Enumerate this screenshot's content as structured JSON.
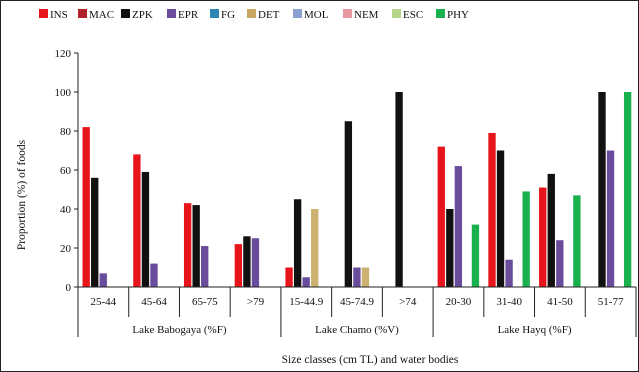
{
  "chart_data": {
    "type": "bar",
    "title": "",
    "xlabel": "Size classes (cm TL) and water bodies",
    "ylabel": "Proportion (%) of foods",
    "ylim": [
      0,
      120
    ],
    "yticks": [
      "0",
      "20",
      "40",
      "60",
      "80",
      "100",
      "120"
    ],
    "grid": false,
    "legend_position": "top",
    "categories": [
      "25-44",
      "45-64",
      "65-75",
      ">79",
      "15-44.9",
      "45-74.9",
      ">74",
      "20-30",
      "31-40",
      "41-50",
      "51-77"
    ],
    "groups": [
      {
        "label": "Lake Babogaya (%F)",
        "span": 4
      },
      {
        "label": "Lake Chamo (%V)",
        "span": 3
      },
      {
        "label": "Lake Hayq (%F)",
        "span": 4
      }
    ],
    "series": [
      {
        "name": "INS",
        "color": "#e8141b",
        "values": [
          82,
          68,
          43,
          22,
          10,
          0,
          0,
          72,
          79,
          51,
          0
        ]
      },
      {
        "name": "MAC",
        "color": "#b0232a",
        "values": [
          0,
          0,
          0,
          0,
          0,
          0,
          0,
          0,
          0,
          0,
          0
        ]
      },
      {
        "name": "ZPK",
        "color": "#111111",
        "values": [
          56,
          59,
          42,
          26,
          45,
          85,
          100,
          40,
          70,
          58,
          100
        ]
      },
      {
        "name": "EPR",
        "color": "#6a4c9c",
        "values": [
          7,
          12,
          21,
          25,
          5,
          10,
          0,
          62,
          14,
          24,
          70
        ]
      },
      {
        "name": "FG",
        "color": "#2e86b5",
        "values": [
          0,
          0,
          0,
          0,
          0,
          0,
          0,
          0,
          0,
          0,
          0
        ]
      },
      {
        "name": "DET",
        "color": "#c8a860",
        "values": [
          0,
          0,
          0,
          0,
          40,
          10,
          0,
          0,
          0,
          0,
          0
        ]
      },
      {
        "name": "MOL",
        "color": "#8ca1cf",
        "values": [
          0,
          0,
          0,
          0,
          0,
          0,
          0,
          0,
          0,
          0,
          0
        ]
      },
      {
        "name": "NEM",
        "color": "#e7979f",
        "values": [
          0,
          0,
          0,
          0,
          0,
          0,
          0,
          0,
          0,
          0,
          0
        ]
      },
      {
        "name": "ESC",
        "color": "#b5d58c",
        "values": [
          0,
          0,
          0,
          0,
          0,
          0,
          0,
          0,
          0,
          0,
          0
        ]
      },
      {
        "name": "PHY",
        "color": "#18b14e",
        "values": [
          0,
          0,
          0,
          0,
          0,
          0,
          0,
          32,
          49,
          47,
          100
        ]
      }
    ]
  }
}
